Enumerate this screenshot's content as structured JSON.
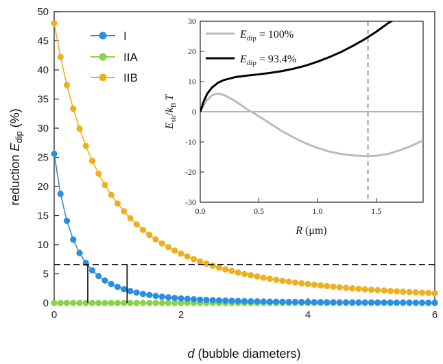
{
  "chart_data": [
    {
      "type": "line",
      "xlabel_italic": "d",
      "xlabel_rest": " (bubble diameters)",
      "ylabel_pre": "reduction ",
      "ylabel_sym": "E",
      "ylabel_sub": "dip",
      "ylabel_post": " (%)",
      "xlim": [
        0,
        6
      ],
      "ylim": [
        0,
        50
      ],
      "xticks": [
        "0",
        "2",
        "4",
        "6"
      ],
      "yticks": [
        "0",
        "5",
        "10",
        "15",
        "20",
        "25",
        "30",
        "35",
        "40",
        "45",
        "50"
      ],
      "series": [
        {
          "name": "I",
          "color": "#2a8fe0",
          "function": "power",
          "a": 25.6,
          "b": 1.1,
          "n": 3,
          "x_step": 0.1
        },
        {
          "name": "IIA",
          "color": "#8ad24a",
          "function": "zero",
          "x_step": 0.1
        },
        {
          "name": "IIB",
          "color": "#ecb021",
          "function": "power",
          "a": 48,
          "b": 0.6,
          "n": 2.2,
          "x_step": 0.1
        }
      ],
      "threshold": {
        "y": 6.6,
        "style": "dashed"
      },
      "markers": [
        {
          "x": 0.53,
          "y": 6.6
        },
        {
          "x": 1.15,
          "y": 6.6
        }
      ]
    },
    {
      "type": "line",
      "xlabel_sym": "R",
      "xlabel_unit": " (μm)",
      "ylabel_sym1": "E",
      "ylabel_sub1": "sk",
      "ylabel_mid": "/",
      "ylabel_sym2": "k",
      "ylabel_sub2": "B",
      "ylabel_sym3": "T",
      "xlim": [
        0,
        1.9
      ],
      "ylim": [
        -30,
        30
      ],
      "xticks": [
        "0.0",
        "0.5",
        "1.0",
        "1.5"
      ],
      "yticks": [
        "-30",
        "-20",
        "-10",
        "0",
        "10",
        "20",
        "30"
      ],
      "series": [
        {
          "name": "100%",
          "label_sym": "E",
          "label_sub": "dip",
          "label_rest": " = 100%",
          "color": "#bbbbbb",
          "x": [
            0,
            0.05,
            0.1,
            0.15,
            0.2,
            0.3,
            0.4,
            0.5,
            0.6,
            0.7,
            0.8,
            0.9,
            1.0,
            1.1,
            1.2,
            1.3,
            1.4,
            1.43,
            1.5,
            1.6,
            1.7,
            1.8,
            1.9
          ],
          "y": [
            0,
            3.5,
            5.5,
            6,
            5.6,
            3.5,
            0.8,
            -1.5,
            -4,
            -6.5,
            -8.6,
            -10.5,
            -12,
            -13.2,
            -14,
            -14.5,
            -14.7,
            -14.7,
            -14.6,
            -14,
            -12.8,
            -11.3,
            -9.5
          ]
        },
        {
          "name": "93.4%",
          "label_sym": "E",
          "label_sub": "dip",
          "label_rest": " = 93.4%",
          "color": "#000000",
          "x": [
            0,
            0.03,
            0.06,
            0.1,
            0.15,
            0.2,
            0.3,
            0.4,
            0.5,
            0.6,
            0.7,
            0.8,
            0.9,
            1.0,
            1.1,
            1.2,
            1.3,
            1.4,
            1.5,
            1.6,
            1.65
          ],
          "y": [
            0,
            3.5,
            6,
            8,
            9.6,
            10.5,
            11.5,
            12,
            12.4,
            12.9,
            13.5,
            14.3,
            15.3,
            16.6,
            18.1,
            19.8,
            21.8,
            24,
            26.5,
            29.3,
            30.5
          ]
        }
      ],
      "zero_line": {
        "y": 0,
        "color": "#888888"
      },
      "vline": {
        "x": 1.43,
        "style": "dashed",
        "color": "#777777"
      }
    }
  ]
}
